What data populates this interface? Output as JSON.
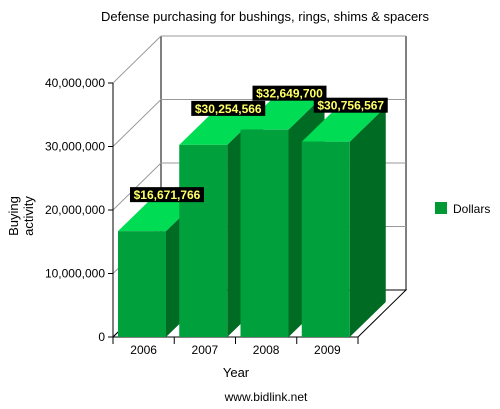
{
  "chart_data": {
    "type": "bar",
    "title": "Defense purchasing for bushings, rings, shims & spacers",
    "xlabel": "Year",
    "ylabel": "Buying activity",
    "ylabel_lines": [
      "Buying",
      "activity"
    ],
    "categories": [
      "2006",
      "2007",
      "2008",
      "2009"
    ],
    "series": [
      {
        "name": "Dollars",
        "values": [
          16671766,
          30254566,
          32649700,
          30756567
        ],
        "data_labels": [
          "$16,671,766",
          "$30,254,566",
          "$32,649,700",
          "$30,756,567"
        ],
        "color": "#009933"
      }
    ],
    "ylim": [
      0,
      40000000
    ],
    "yticks": [
      0,
      10000000,
      20000000,
      30000000,
      40000000
    ],
    "ytick_labels": [
      "0",
      "10,000,000",
      "20,000,000",
      "30,000,000",
      "40,000,000"
    ],
    "grid": true,
    "legend_position": "right",
    "footer": "www.bidlink.net",
    "colors": {
      "bar_front": "#00a03c",
      "bar_top": "#00dd55",
      "bar_side": "#006b22",
      "label_bg": "#000000",
      "label_text": "#ffff66",
      "grid": "#999999"
    }
  }
}
